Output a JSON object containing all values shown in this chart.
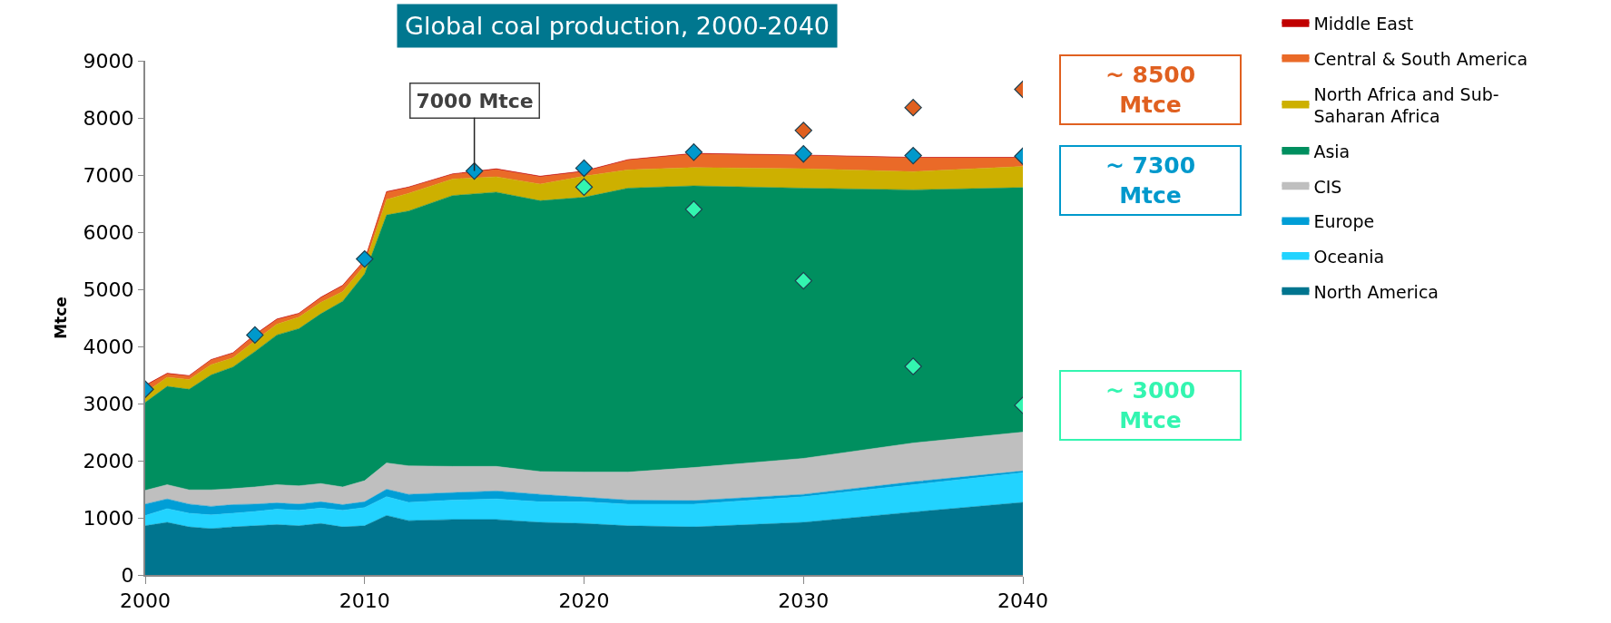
{
  "chart_data": {
    "type": "area",
    "stacked": true,
    "title": "Global coal production, 2000-2040",
    "ylabel": "Mtce",
    "x": [
      2000,
      2001,
      2002,
      2003,
      2004,
      2005,
      2006,
      2007,
      2008,
      2009,
      2010,
      2011,
      2012,
      2014,
      2016,
      2018,
      2020,
      2022,
      2025,
      2030,
      2035,
      2040
    ],
    "xlim": [
      2000,
      2040
    ],
    "xticks": [
      2000,
      2010,
      2020,
      2030,
      2040
    ],
    "ylim": [
      0,
      9000
    ],
    "yticks": [
      0,
      1000,
      2000,
      3000,
      4000,
      5000,
      6000,
      7000,
      8000,
      9000
    ],
    "legend": "right",
    "series": [
      {
        "name": "North America",
        "color": "#00758f",
        "values": [
          860,
          920,
          840,
          810,
          840,
          860,
          880,
          860,
          900,
          840,
          860,
          1040,
          950,
          970,
          970,
          920,
          900,
          860,
          840,
          920,
          1100,
          1270
        ]
      },
      {
        "name": "Oceania",
        "color": "#22d3ff",
        "values": [
          180,
          240,
          240,
          240,
          240,
          250,
          270,
          270,
          270,
          290,
          320,
          330,
          320,
          340,
          360,
          360,
          380,
          380,
          400,
          450,
          480,
          520
        ]
      },
      {
        "name": "Europe",
        "color": "#009ed6",
        "values": [
          200,
          170,
          160,
          150,
          150,
          130,
          110,
          110,
          110,
          100,
          100,
          130,
          140,
          130,
          140,
          130,
          80,
          70,
          60,
          40,
          50,
          30
        ]
      },
      {
        "name": "CIS",
        "color": "#bfbfbf",
        "values": [
          240,
          250,
          250,
          290,
          280,
          300,
          320,
          320,
          320,
          310,
          370,
          460,
          500,
          460,
          430,
          400,
          440,
          490,
          580,
          630,
          680,
          680
        ]
      },
      {
        "name": "Asia",
        "color": "#008f5f",
        "values": [
          1540,
          1720,
          1760,
          2010,
          2130,
          2370,
          2620,
          2750,
          2970,
          3250,
          3620,
          4340,
          4460,
          4740,
          4800,
          4740,
          4810,
          4970,
          4930,
          4730,
          4430,
          4280
        ]
      },
      {
        "name": "North Africa and Sub-Saharan Africa",
        "color": "#cdb000",
        "values": [
          170,
          160,
          170,
          180,
          160,
          190,
          190,
          200,
          200,
          170,
          150,
          270,
          310,
          290,
          270,
          290,
          370,
          320,
          320,
          340,
          320,
          370
        ]
      },
      {
        "name": "Central & South America",
        "color": "#ea6a28",
        "values": [
          120,
          60,
          60,
          80,
          80,
          100,
          80,
          60,
          80,
          100,
          80,
          130,
          100,
          80,
          130,
          130,
          80,
          170,
          240,
          230,
          240,
          150
        ]
      },
      {
        "name": "Middle East",
        "color": "#c00000",
        "values": [
          10,
          10,
          10,
          10,
          10,
          10,
          10,
          10,
          10,
          10,
          10,
          10,
          10,
          10,
          10,
          10,
          10,
          10,
          10,
          10,
          10,
          10
        ]
      },
      {
        "type": "scatter",
        "marker": "diamond",
        "color": "#33f5b0",
        "x": [
          2020,
          2025,
          2030,
          2035,
          2040
        ],
        "values": [
          6790,
          6400,
          5150,
          3650,
          2970
        ]
      },
      {
        "type": "scatter",
        "marker": "diamond",
        "color": "#e06020",
        "x": [
          2030,
          2035,
          2040
        ],
        "values": [
          7780,
          8180,
          8500
        ]
      },
      {
        "type": "scatter",
        "marker": "diamond",
        "color": "#0099cc",
        "x": [
          2000,
          2005,
          2010,
          2015,
          2020,
          2025,
          2030,
          2035,
          2040
        ],
        "values": [
          3250,
          4200,
          5530,
          7070,
          7120,
          7400,
          7370,
          7340,
          7330
        ]
      }
    ],
    "annotations": [
      {
        "text": "7000 Mtce",
        "x": 2015,
        "y": 7070
      },
      "~ 8500 Mtce",
      "~ 7300 Mtce",
      "~ 3000 Mtce"
    ]
  }
}
